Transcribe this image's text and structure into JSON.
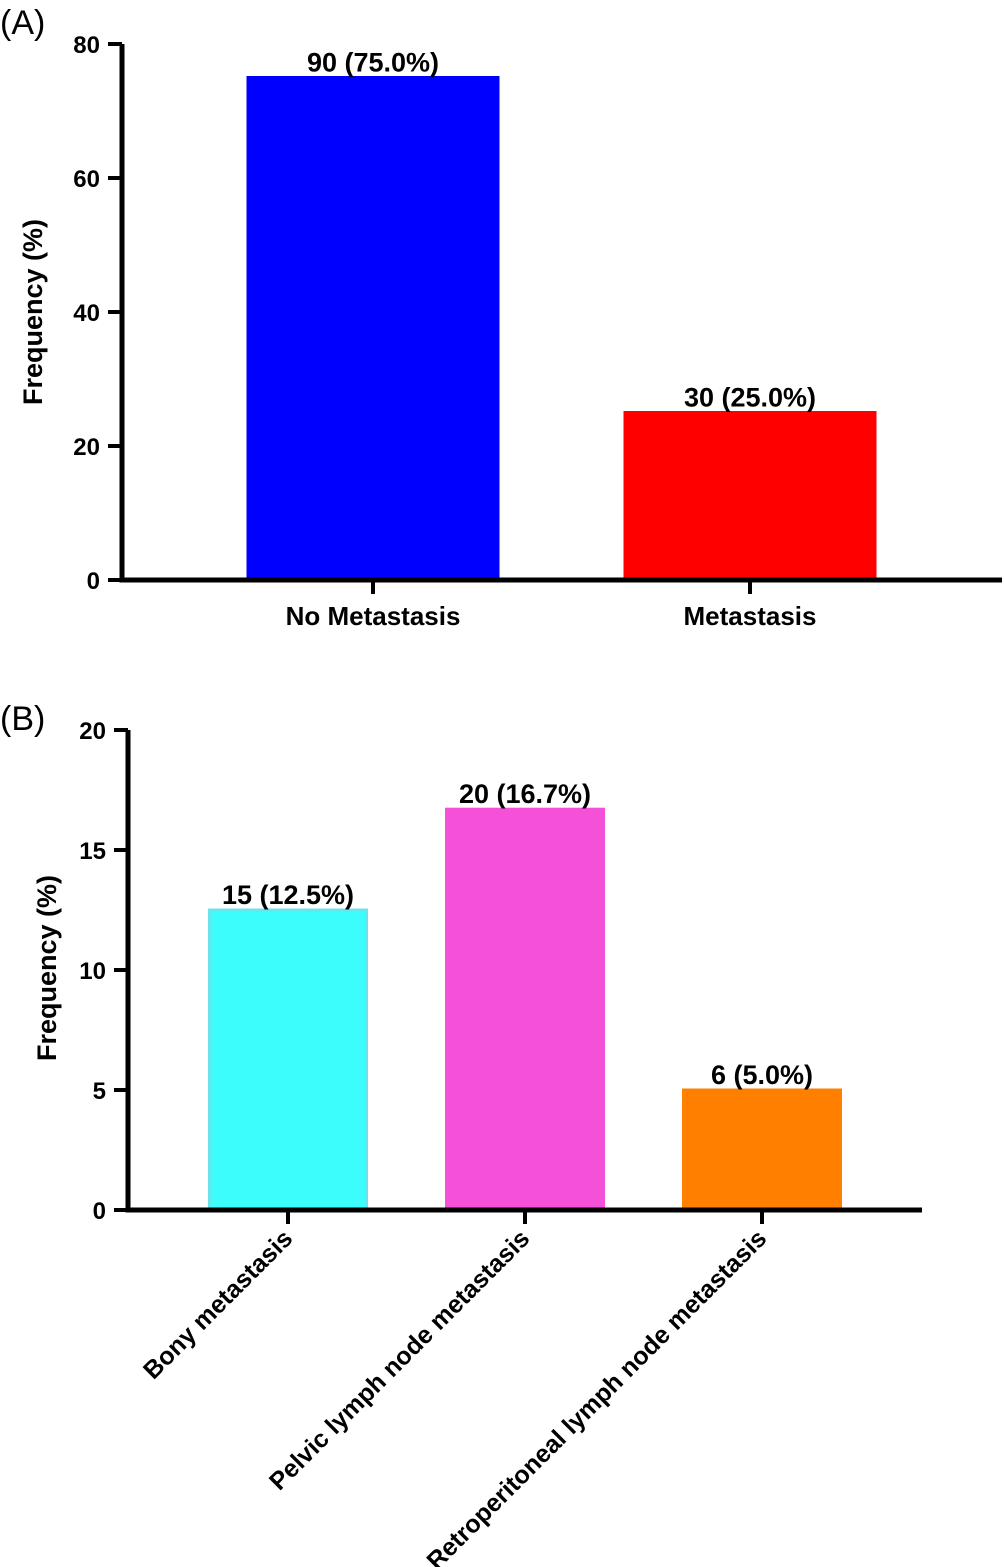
{
  "chart_data": [
    {
      "panel": "(A)",
      "type": "bar",
      "ylabel": "Frequency (%)",
      "xlabel": "",
      "ylim": [
        0,
        80
      ],
      "yticks": [
        0,
        20,
        40,
        60,
        80
      ],
      "categories": [
        "No Metastasis",
        "Metastasis"
      ],
      "values": [
        75.0,
        25.0
      ],
      "data_labels": [
        "90 (75.0%)",
        "30 (25.0%)"
      ],
      "colors": [
        "#0000ff",
        "#ff0000"
      ],
      "grid": false,
      "legend": "none"
    },
    {
      "panel": "(B)",
      "type": "bar",
      "ylabel": "Frequency (%)",
      "xlabel": "",
      "ylim": [
        0,
        20
      ],
      "yticks": [
        0,
        5,
        10,
        15,
        20
      ],
      "categories": [
        "Bony metastasis",
        "Pelvic lymph node metastasis",
        "Retroperitoneal lymph node metastasis"
      ],
      "values": [
        12.5,
        16.7,
        5.0
      ],
      "data_labels": [
        "15 (12.5%)",
        "20 (16.7%)",
        "6 (5.0%)"
      ],
      "colors": [
        "#3dfcfc",
        "#f550d8",
        "#ff8000"
      ],
      "bar_edge_colors": [
        "#66e6ec",
        "#f550d8",
        "#ff8000"
      ],
      "grid": false,
      "legend": "none"
    }
  ]
}
